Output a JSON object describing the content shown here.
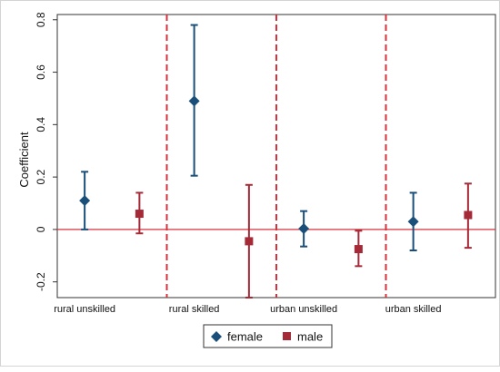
{
  "chart_data": {
    "type": "scatter",
    "subtype": "coefficient-plot-with-error-bars",
    "title": "",
    "xlabel": "",
    "ylabel": "Coefficient",
    "ylim": [
      -0.26,
      0.82
    ],
    "yticks": [
      -0.2,
      0,
      0.2,
      0.4,
      0.6,
      0.8
    ],
    "ytick_labels": [
      "-0.2",
      "0",
      "0.2",
      "0.4",
      "0.6",
      "0.8"
    ],
    "categories": [
      "rural unskilled",
      "rural skilled",
      "urban unskilled",
      "urban skilled"
    ],
    "reference_line": {
      "y": 0,
      "color": "#d9303b"
    },
    "separator_color": "#d9303b",
    "grid": false,
    "legend": {
      "placement": "bottom-center"
    },
    "series": [
      {
        "name": "female",
        "marker": "diamond",
        "color": "#1a4f7a",
        "points": [
          {
            "category": "rural unskilled",
            "value": 0.11,
            "lower": 0.0,
            "upper": 0.22
          },
          {
            "category": "rural skilled",
            "value": 0.49,
            "lower": 0.205,
            "upper": 0.78
          },
          {
            "category": "urban unskilled",
            "value": 0.003,
            "lower": -0.065,
            "upper": 0.07
          },
          {
            "category": "urban skilled",
            "value": 0.03,
            "lower": -0.08,
            "upper": 0.14
          }
        ]
      },
      {
        "name": "male",
        "marker": "square",
        "color": "#a52a38",
        "points": [
          {
            "category": "rural unskilled",
            "value": 0.06,
            "lower": -0.015,
            "upper": 0.14
          },
          {
            "category": "rural skilled",
            "value": -0.045,
            "lower": -0.26,
            "upper": 0.17
          },
          {
            "category": "urban unskilled",
            "value": -0.075,
            "lower": -0.14,
            "upper": -0.005
          },
          {
            "category": "urban skilled",
            "value": 0.055,
            "lower": -0.07,
            "upper": 0.175
          }
        ]
      }
    ]
  }
}
